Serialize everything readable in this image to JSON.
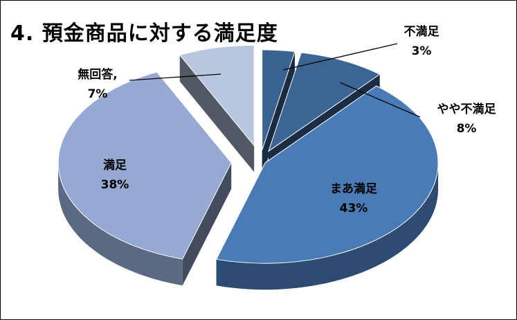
{
  "chart_data": {
    "type": "pie",
    "title": "4. 預金商品に対する満足度",
    "slices": [
      {
        "label": "不満足",
        "value": 3,
        "value_text": "3%",
        "color": "#3b6392"
      },
      {
        "label": "やや不満足",
        "value": 8,
        "value_text": "8%",
        "color": "#3c6596"
      },
      {
        "label": "まあ満足",
        "value": 43,
        "value_text": "43%",
        "color": "#4a7bb7"
      },
      {
        "label": "満足",
        "value": 38,
        "value_text": "38%",
        "color": "#95a9d3"
      },
      {
        "label": "無回答,",
        "value": 7,
        "value_text": "7%",
        "color": "#b9c6df"
      }
    ],
    "colors": {
      "background": "#ffffff",
      "border": "#000000",
      "leader_line": "#000000"
    }
  }
}
